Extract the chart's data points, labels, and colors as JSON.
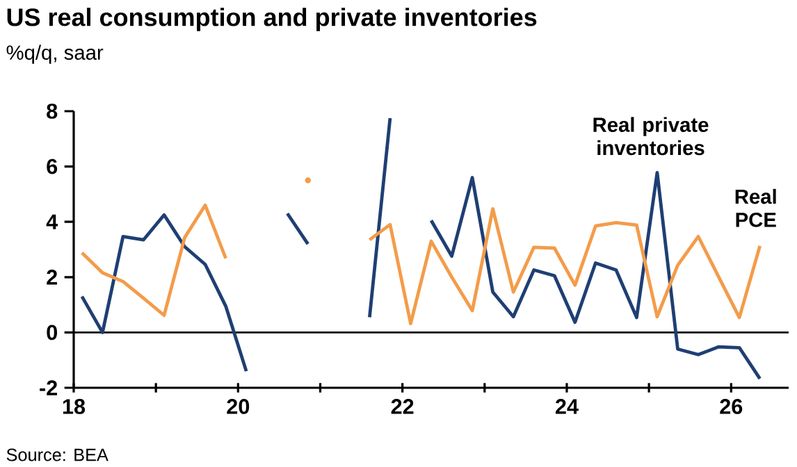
{
  "chart_data": {
    "type": "line",
    "title": "US real consumption and private inventories",
    "subtitle": "%q/q, saar",
    "annotations": [
      "Source: BEA"
    ],
    "x": [
      18.1,
      18.35,
      18.6,
      18.85,
      19.1,
      19.35,
      19.6,
      19.85,
      20.1,
      20.35,
      20.6,
      20.85,
      21.1,
      21.35,
      21.6,
      21.85,
      22.1,
      22.35,
      22.6,
      22.85,
      23.1,
      23.35,
      23.6,
      23.85,
      24.1,
      24.35,
      24.6,
      24.85,
      25.1,
      25.35,
      25.6,
      25.85,
      26.1,
      26.35
    ],
    "series": [
      {
        "name": "Real private inventories",
        "color": "#1f3f73",
        "values": [
          1.3,
          0.0,
          3.47,
          3.35,
          4.25,
          3.1,
          2.46,
          0.95,
          -1.4,
          null,
          4.3,
          3.2,
          null,
          null,
          0.55,
          7.75,
          null,
          4.05,
          2.76,
          5.6,
          1.46,
          0.57,
          2.26,
          2.05,
          0.37,
          2.51,
          2.26,
          0.54,
          5.78,
          -0.6,
          -0.8,
          -0.52,
          -0.55,
          -1.67
        ]
      },
      {
        "name": "Real PCE",
        "color": "#f39c4a",
        "values": [
          2.88,
          2.16,
          1.84,
          1.24,
          0.62,
          3.43,
          4.6,
          2.68,
          null,
          null,
          null,
          5.5,
          null,
          null,
          3.35,
          3.9,
          0.32,
          3.3,
          2.0,
          0.79,
          4.47,
          1.46,
          3.08,
          3.05,
          1.71,
          3.85,
          3.97,
          3.88,
          0.57,
          2.43,
          3.47,
          2.0,
          0.54,
          3.13
        ]
      }
    ],
    "xlim": [
      18,
      26.7
    ],
    "ylim": [
      -2,
      8
    ],
    "xticks": [
      18,
      {
        "value": 19,
        "label": null
      },
      20,
      {
        "value": 21,
        "label": null
      },
      22,
      {
        "value": 23,
        "label": null
      },
      24,
      {
        "value": 25,
        "label": null
      },
      26
    ],
    "yticks": [
      -2,
      0,
      2,
      4,
      6,
      8
    ],
    "ref_lines": [
      {
        "axis": "y",
        "value": 0,
        "color": "#000000"
      }
    ]
  }
}
